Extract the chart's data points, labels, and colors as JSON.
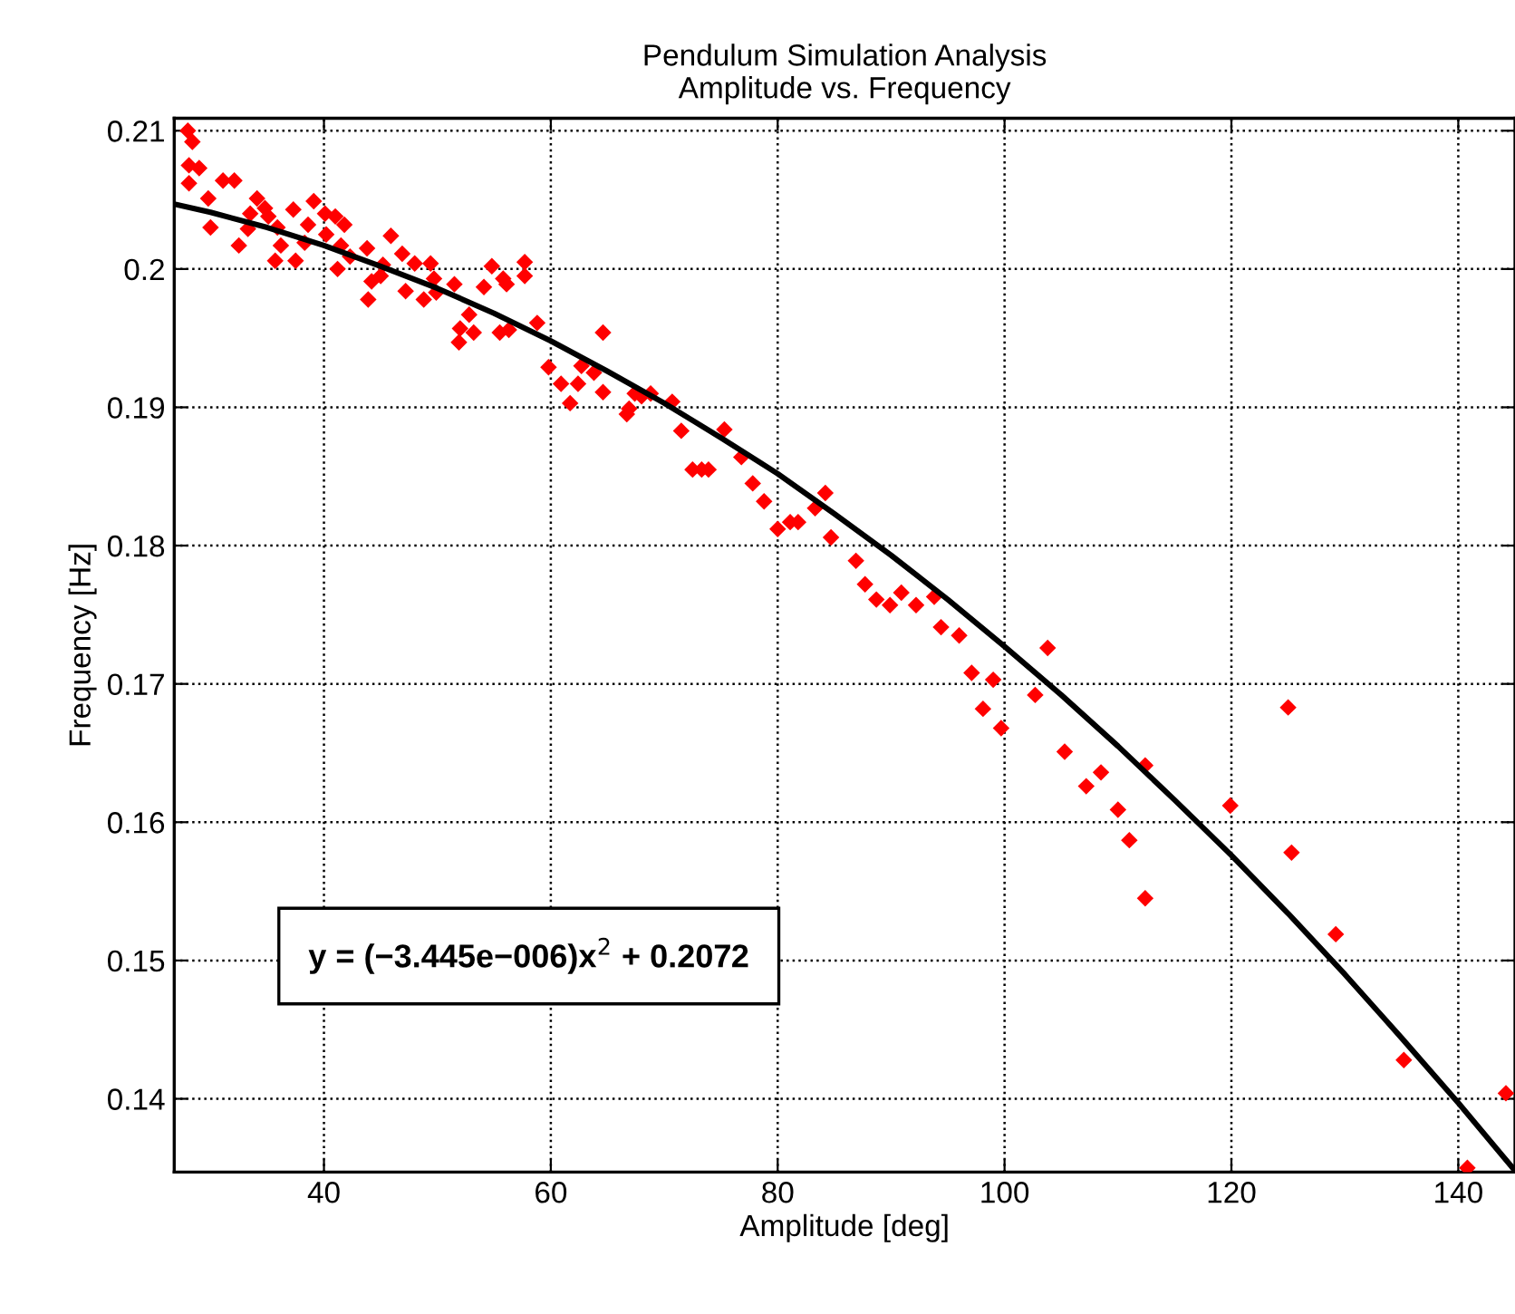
{
  "chart_data": {
    "type": "scatter",
    "title": "Pendulum Simulation Analysis",
    "subtitle": "Amplitude vs. Frequency",
    "xlabel": "Amplitude [deg]",
    "ylabel": "Frequency [Hz]",
    "xlim": [
      26.8,
      145
    ],
    "ylim": [
      0.1347,
      0.2109
    ],
    "xticks": [
      40,
      60,
      80,
      100,
      120,
      140
    ],
    "yticks": [
      0.14,
      0.15,
      0.16,
      0.17,
      0.18,
      0.19,
      0.2,
      0.21
    ],
    "grid": true,
    "annotations": [
      "y = (−3.445e−006)x$^{2}$ + 0.2072"
    ],
    "series": [
      {
        "marker": "diamond",
        "color": "#ff0000",
        "x": [
          28.0,
          28.4,
          28.1,
          29.0,
          28.1,
          31.1,
          32.1,
          29.8,
          30.0,
          32.5,
          33.3,
          33.5,
          34.1,
          34.8,
          35.1,
          35.9,
          36.2,
          35.7,
          37.3,
          37.5,
          38.3,
          38.6,
          39.1,
          40.1,
          41.0,
          41.8,
          40.2,
          41.5,
          41.2,
          42.3,
          43.8,
          45.9,
          44.2,
          43.9,
          45.0,
          45.2,
          46.9,
          48.0,
          49.4,
          49.7,
          49.9,
          47.2,
          48.8,
          51.5,
          52.8,
          52.0,
          51.9,
          53.2,
          54.1,
          54.8,
          55.8,
          56.1,
          56.3,
          55.5,
          57.7,
          57.7,
          58.8,
          59.8,
          60.9,
          61.7,
          62.4,
          62.7,
          63.8,
          64.6,
          64.6,
          66.7,
          66.9,
          67.4,
          68.0,
          68.8,
          70.7,
          71.5,
          72.5,
          73.3,
          73.9,
          75.3,
          76.8,
          77.8,
          78.8,
          80.0,
          81.1,
          81.8,
          83.3,
          84.2,
          84.7,
          86.9,
          87.7,
          88.7,
          89.9,
          90.9,
          92.2,
          93.8,
          94.4,
          96.0,
          97.1,
          99.0,
          98.1,
          99.7,
          102.7,
          103.8,
          105.3,
          107.2,
          108.5,
          110.0,
          112.4,
          119.9,
          125.0,
          111.0,
          112.4,
          125.3,
          129.2,
          135.2,
          140.8,
          144.2
        ],
        "values": [
          0.21,
          0.2092,
          0.2075,
          0.2073,
          0.2062,
          0.2064,
          0.2064,
          0.2051,
          0.203,
          0.2017,
          0.2029,
          0.204,
          0.2051,
          0.2044,
          0.2038,
          0.203,
          0.2017,
          0.2006,
          0.2043,
          0.2006,
          0.2019,
          0.2032,
          0.2049,
          0.204,
          0.2038,
          0.2032,
          0.2025,
          0.2017,
          0.2,
          0.2009,
          0.2015,
          0.2024,
          0.1991,
          0.1978,
          0.1995,
          0.2003,
          0.2011,
          0.2004,
          0.2004,
          0.1993,
          0.1983,
          0.1984,
          0.1978,
          0.1989,
          0.1967,
          0.1957,
          0.1947,
          0.1954,
          0.1987,
          0.2002,
          0.1993,
          0.1989,
          0.1956,
          0.1954,
          0.2005,
          0.1995,
          0.1961,
          0.1929,
          0.1917,
          0.1903,
          0.1917,
          0.193,
          0.1925,
          0.1954,
          0.1911,
          0.1895,
          0.1899,
          0.191,
          0.1908,
          0.191,
          0.1904,
          0.1883,
          0.1855,
          0.1855,
          0.1855,
          0.1884,
          0.1864,
          0.1845,
          0.1832,
          0.1812,
          0.1817,
          0.1817,
          0.1827,
          0.1838,
          0.1806,
          0.1789,
          0.1772,
          0.1761,
          0.1757,
          0.1766,
          0.1757,
          0.1763,
          0.1741,
          0.1735,
          0.1708,
          0.1703,
          0.1682,
          0.1668,
          0.1692,
          0.1726,
          0.1651,
          0.1626,
          0.1636,
          0.1609,
          0.1641,
          0.1612,
          0.1683,
          0.1587,
          0.1545,
          0.1578,
          0.1519,
          0.1428,
          0.135,
          0.1404
        ]
      },
      {
        "type": "line",
        "marker": "none",
        "line_style": "solid",
        "color": "#000000",
        "x": [
          26.8,
          30,
          35,
          40,
          45,
          50,
          55,
          60,
          65,
          70,
          75,
          80,
          85,
          90,
          95,
          100,
          105,
          110,
          115,
          120,
          125,
          130,
          135,
          140,
          145
        ],
        "values": [
          0.2047,
          0.2041,
          0.203,
          0.2017,
          0.2002,
          0.1986,
          0.1968,
          0.1948,
          0.1926,
          0.1903,
          0.1878,
          0.1852,
          0.1823,
          0.1793,
          0.1761,
          0.1727,
          0.1692,
          0.1655,
          0.1616,
          0.1576,
          0.1534,
          0.149,
          0.1444,
          0.1397,
          0.1348
        ]
      }
    ]
  }
}
